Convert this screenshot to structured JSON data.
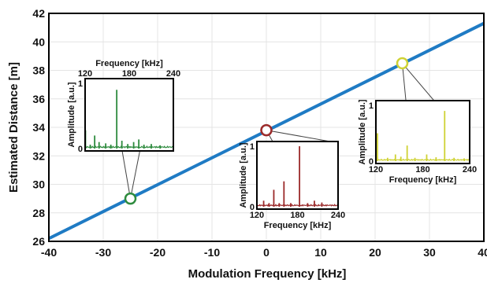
{
  "colors": {
    "line": "#1f7bc4",
    "green": "#2e8b3e",
    "red": "#9b2a2a",
    "yellow": "#cfd234",
    "grid": "#e4e4e4"
  },
  "chart_data": {
    "type": "line",
    "title": "",
    "xlabel": "Modulation Frequency [kHz]",
    "ylabel": "Estimated Distance [m]",
    "xlim": [
      -40,
      40
    ],
    "ylim": [
      26,
      42
    ],
    "xticks": [
      "-40",
      "-30",
      "-20",
      "-10",
      "0",
      "10",
      "20",
      "30",
      "40"
    ],
    "yticks": [
      "26",
      "28",
      "30",
      "32",
      "34",
      "36",
      "38",
      "40",
      "42"
    ],
    "grid": true,
    "series": [
      {
        "x": [
          -40,
          40
        ],
        "y": [
          26.2,
          41.3
        ]
      }
    ],
    "markers": [
      {
        "x": -25,
        "y": 29.0,
        "color": "green"
      },
      {
        "x": 0,
        "y": 33.8,
        "color": "red"
      },
      {
        "x": 25,
        "y": 38.5,
        "color": "yellow"
      }
    ],
    "insets": [
      {
        "color": "green",
        "xlabel": "Frequency [kHz]",
        "xlabel_position": "top",
        "ylabel": "Amplitude [a.u.]",
        "xticks": [
          "120",
          "180",
          "240"
        ],
        "yticks": [
          "0",
          "1"
        ],
        "xlim": [
          120,
          240
        ],
        "ylim": [
          0,
          1
        ],
        "peaks": [
          {
            "x": 120.5,
            "y": 0.28
          },
          {
            "x": 127,
            "y": 0.06
          },
          {
            "x": 133,
            "y": 0.2
          },
          {
            "x": 139,
            "y": 0.1
          },
          {
            "x": 148,
            "y": 0.08
          },
          {
            "x": 155,
            "y": 0.06
          },
          {
            "x": 163,
            "y": 0.9
          },
          {
            "x": 170,
            "y": 0.12
          },
          {
            "x": 178,
            "y": 0.07
          },
          {
            "x": 186,
            "y": 0.1
          },
          {
            "x": 193,
            "y": 0.14
          },
          {
            "x": 200,
            "y": 0.06
          },
          {
            "x": 210,
            "y": 0.07
          },
          {
            "x": 222,
            "y": 0.05
          }
        ]
      },
      {
        "color": "red",
        "xlabel": "Frequency [kHz]",
        "ylabel": "Amplitude [a.u.]",
        "xticks": [
          "120",
          "180",
          "240"
        ],
        "yticks": [
          "0",
          "1"
        ],
        "xlim": [
          120,
          240
        ],
        "ylim": [
          0,
          1
        ],
        "peaks": [
          {
            "x": 130,
            "y": 0.1
          },
          {
            "x": 138,
            "y": 0.06
          },
          {
            "x": 145,
            "y": 0.28
          },
          {
            "x": 153,
            "y": 0.06
          },
          {
            "x": 160,
            "y": 0.42
          },
          {
            "x": 170,
            "y": 0.06
          },
          {
            "x": 183,
            "y": 1.0
          },
          {
            "x": 195,
            "y": 0.06
          },
          {
            "x": 205,
            "y": 0.1
          },
          {
            "x": 216,
            "y": 0.07
          }
        ]
      },
      {
        "color": "yellow",
        "xlabel": "Frequency [kHz]",
        "ylabel": "Amplitude [a.u.]",
        "xticks": [
          "120",
          "180",
          "240"
        ],
        "yticks": [
          "0",
          "1"
        ],
        "xlim": [
          120,
          240
        ],
        "ylim": [
          0,
          1
        ],
        "peaks": [
          {
            "x": 122,
            "y": 0.5
          },
          {
            "x": 135,
            "y": 0.06
          },
          {
            "x": 145,
            "y": 0.12
          },
          {
            "x": 152,
            "y": 0.08
          },
          {
            "x": 160,
            "y": 0.28
          },
          {
            "x": 170,
            "y": 0.06
          },
          {
            "x": 185,
            "y": 0.12
          },
          {
            "x": 197,
            "y": 0.07
          },
          {
            "x": 208,
            "y": 0.9
          },
          {
            "x": 220,
            "y": 0.06
          },
          {
            "x": 233,
            "y": 0.05
          }
        ]
      }
    ]
  }
}
